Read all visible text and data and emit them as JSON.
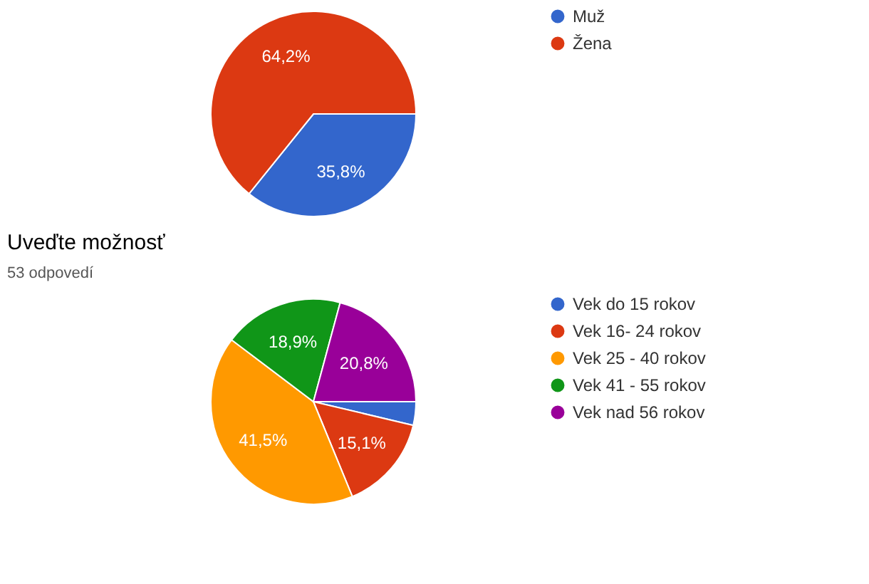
{
  "chart_data": [
    {
      "type": "pie",
      "categories": [
        "Muž",
        "Žena"
      ],
      "values": [
        35.8,
        64.2
      ],
      "colors": [
        "#3366cc",
        "#dc3912"
      ],
      "value_labels": [
        "35,8%",
        "64,2%"
      ],
      "legend": "right"
    },
    {
      "type": "pie",
      "title": "Uveďte možnosť",
      "subtitle": "53 odpovedí",
      "categories": [
        "Vek do 15 rokov",
        "Vek 16- 24 rokov",
        "Vek 25 - 40 rokov",
        "Vek 41 - 55 rokov",
        "Vek nad 56 rokov"
      ],
      "values": [
        3.7,
        15.1,
        41.5,
        18.9,
        20.8
      ],
      "colors": [
        "#3366cc",
        "#dc3912",
        "#ff9900",
        "#109618",
        "#990099"
      ],
      "value_labels": [
        null,
        "15,1%",
        "41,5%",
        "18,9%",
        "20,8%"
      ],
      "legend": "right"
    }
  ]
}
